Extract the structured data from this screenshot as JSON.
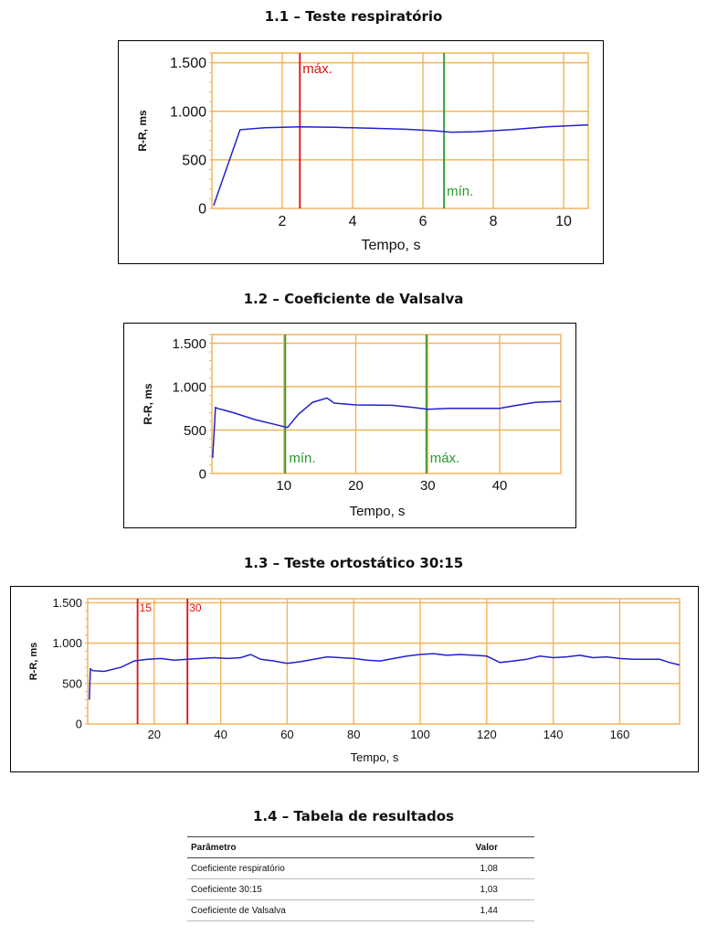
{
  "sections": [
    {
      "title": "1.1 – Teste respiratório"
    },
    {
      "title": "1.2 – Coeficiente de Valsalva"
    },
    {
      "title": "1.3 – Teste ortostático 30:15"
    },
    {
      "title": "1.4 – Tabela de resultados"
    }
  ],
  "chart_data": [
    {
      "type": "line",
      "title": "1.1 – Teste respiratório",
      "xlabel": "Tempo, s",
      "ylabel": "R-R, ms",
      "xlim": [
        0,
        10.7
      ],
      "ylim": [
        0,
        1600
      ],
      "xticks": [
        2,
        4,
        6,
        8,
        10
      ],
      "yticks": [
        0,
        500,
        1000,
        1500
      ],
      "ytick_labels": [
        "0",
        "500",
        "1.000",
        "1.500"
      ],
      "xgrid": [
        2,
        4,
        6,
        8,
        10
      ],
      "ygrid": [
        500,
        1000,
        1500
      ],
      "grid": true,
      "grid_color": "#f4b35a",
      "line_color": "#2020d0",
      "series": [
        {
          "x": [
            0.05,
            0.8,
            1.5,
            2.5,
            3.5,
            4.5,
            5.5,
            6.3,
            6.8,
            7.5,
            8.5,
            9.5,
            10.7
          ],
          "y": [
            30,
            810,
            830,
            840,
            835,
            825,
            815,
            800,
            785,
            790,
            810,
            840,
            860
          ]
        }
      ],
      "markers": [
        {
          "x": 2.5,
          "label": "máx.",
          "color": "#e01010"
        },
        {
          "x": 6.6,
          "label": "mín.",
          "color": "#2a9a2a"
        }
      ]
    },
    {
      "type": "line",
      "title": "1.2 – Coeficiente de Valsalva",
      "xlabel": "Tempo, s",
      "ylabel": "R-R, ms",
      "xlim": [
        0,
        48.5
      ],
      "ylim": [
        0,
        1600
      ],
      "xticks": [
        10,
        20,
        30,
        40
      ],
      "yticks": [
        0,
        500,
        1000,
        1500
      ],
      "ytick_labels": [
        "0",
        "500",
        "1.000",
        "1.500"
      ],
      "xgrid": [
        10,
        20,
        30,
        40
      ],
      "ygrid": [
        500,
        1000,
        1500
      ],
      "grid": true,
      "grid_color": "#f4b35a",
      "line_color": "#2020d0",
      "series": [
        {
          "x": [
            0.1,
            0.5,
            0.8,
            3,
            6,
            9,
            10.5,
            12,
            14,
            16,
            17,
            20,
            25,
            28,
            30,
            33,
            40,
            42,
            45,
            48.5
          ],
          "y": [
            180,
            760,
            750,
            700,
            620,
            560,
            530,
            680,
            820,
            870,
            810,
            790,
            785,
            760,
            740,
            750,
            750,
            780,
            820,
            830
          ]
        }
      ],
      "markers": [
        {
          "x": 10.2,
          "label": "mín.",
          "color": "#2a9a2a"
        },
        {
          "x": 29.8,
          "label": "máx.",
          "color": "#2a9a2a"
        }
      ]
    },
    {
      "type": "line",
      "title": "1.3 – Teste ortostático 30:15",
      "xlabel": "Tempo, s",
      "ylabel": "R-R, ms",
      "xlim": [
        0,
        178
      ],
      "ylim": [
        0,
        1550
      ],
      "xticks": [
        20,
        40,
        60,
        80,
        100,
        120,
        140,
        160
      ],
      "yticks": [
        0,
        500,
        1000,
        1500
      ],
      "ytick_labels": [
        "0",
        "500",
        "1.000",
        "1.500"
      ],
      "xgrid": [
        20,
        40,
        60,
        80,
        100,
        120,
        140,
        160
      ],
      "ygrid": [
        500,
        1000,
        1500
      ],
      "grid": true,
      "grid_color": "#f4b35a",
      "line_color": "#2020d0",
      "series": [
        {
          "x": [
            0.5,
            0.8,
            1.5,
            5,
            10,
            14,
            18,
            22,
            26,
            30,
            34,
            38,
            42,
            46,
            49,
            52,
            56,
            60,
            64,
            68,
            72,
            76,
            80,
            84,
            88,
            92,
            96,
            100,
            104,
            108,
            112,
            116,
            120,
            124,
            128,
            132,
            136,
            140,
            144,
            148,
            152,
            156,
            160,
            164,
            168,
            172,
            175,
            178
          ],
          "y": [
            300,
            680,
            660,
            650,
            700,
            780,
            800,
            810,
            790,
            800,
            810,
            820,
            810,
            820,
            860,
            800,
            780,
            750,
            770,
            800,
            830,
            820,
            810,
            790,
            780,
            810,
            840,
            860,
            870,
            850,
            860,
            850,
            840,
            760,
            780,
            800,
            840,
            820,
            830,
            850,
            820,
            830,
            810,
            800,
            800,
            800,
            760,
            730
          ]
        }
      ],
      "markers": [
        {
          "x": 15,
          "label": "15",
          "color": "#e01010"
        },
        {
          "x": 30,
          "label": "30",
          "color": "#e01010"
        }
      ]
    }
  ],
  "table": {
    "headers": [
      "Parâmetro",
      "Valor"
    ],
    "rows": [
      [
        "Coeficiente respiratório",
        "1,08"
      ],
      [
        "Coeficiente 30:15",
        "1,03"
      ],
      [
        "Coeficiente de Valsalva",
        "1,44"
      ]
    ]
  }
}
